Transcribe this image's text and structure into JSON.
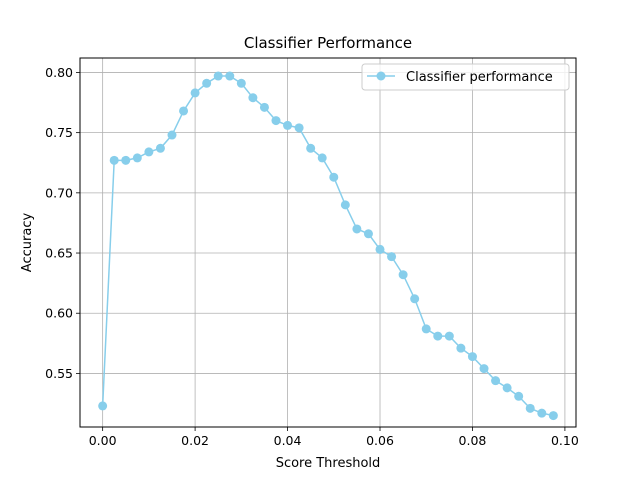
{
  "chart_data": {
    "type": "line",
    "title": "Classifier Performance",
    "xlabel": "Score Threshold",
    "ylabel": "Accuracy",
    "xlim": [
      -0.0049,
      0.1024
    ],
    "ylim": [
      0.5055,
      0.812
    ],
    "xticks": [
      0.0,
      0.02,
      0.04,
      0.06,
      0.08,
      0.1
    ],
    "xtick_labels": [
      "0.00",
      "0.02",
      "0.04",
      "0.06",
      "0.08",
      "0.10"
    ],
    "yticks": [
      0.55,
      0.6,
      0.65,
      0.7,
      0.75,
      0.8
    ],
    "ytick_labels": [
      "0.55",
      "0.60",
      "0.65",
      "0.70",
      "0.75",
      "0.80"
    ],
    "grid": true,
    "legend_position": "top-right",
    "series": [
      {
        "name": "Classifier performance",
        "color": "#87CEEB",
        "marker": "circle",
        "x": [
          0.0,
          0.0025,
          0.005,
          0.0075,
          0.01,
          0.0125,
          0.015,
          0.0175,
          0.02,
          0.0225,
          0.025,
          0.0275,
          0.03,
          0.0325,
          0.035,
          0.0375,
          0.04,
          0.0425,
          0.045,
          0.0475,
          0.05,
          0.0525,
          0.055,
          0.0575,
          0.06,
          0.0625,
          0.065,
          0.0675,
          0.07,
          0.0725,
          0.075,
          0.0775,
          0.08,
          0.0825,
          0.085,
          0.0875,
          0.09,
          0.0925,
          0.095,
          0.0975
        ],
        "y": [
          0.523,
          0.727,
          0.727,
          0.729,
          0.734,
          0.737,
          0.748,
          0.768,
          0.783,
          0.791,
          0.797,
          0.797,
          0.791,
          0.779,
          0.771,
          0.76,
          0.756,
          0.754,
          0.737,
          0.729,
          0.713,
          0.69,
          0.67,
          0.666,
          0.653,
          0.647,
          0.632,
          0.612,
          0.587,
          0.581,
          0.581,
          0.571,
          0.564,
          0.554,
          0.544,
          0.538,
          0.531,
          0.521,
          0.517,
          0.515
        ]
      }
    ]
  }
}
